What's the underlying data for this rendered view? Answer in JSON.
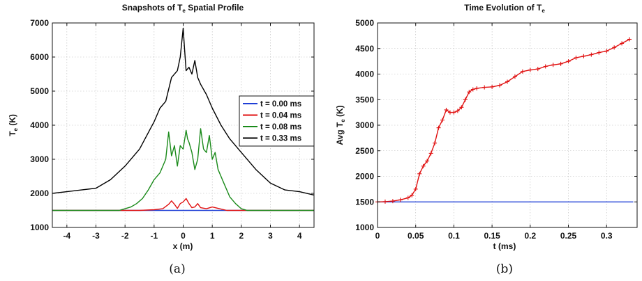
{
  "chart_data": [
    {
      "type": "line",
      "title": "Snapshots of T",
      "title_subscript": "e",
      "title_suffix": " Spatial Profile",
      "xlabel": "x (m)",
      "ylabel": "T",
      "ylabel_subscript": "e",
      "ylabel_suffix": " (K)",
      "xlim": [
        -4.5,
        4.5
      ],
      "ylim": [
        1000,
        7000
      ],
      "xticks": [
        -4,
        -3,
        -2,
        -1,
        0,
        1,
        2,
        3,
        4
      ],
      "yticks": [
        1000,
        2000,
        3000,
        4000,
        5000,
        6000,
        7000
      ],
      "xtick_labels": [
        "-4",
        "-3",
        "-2",
        "-1",
        "0",
        "1",
        "2",
        "3",
        "4"
      ],
      "ytick_labels": [
        "1000",
        "2000",
        "3000",
        "4000",
        "5000",
        "6000",
        "7000"
      ],
      "grid": true,
      "legend_position": "right",
      "caption": "(a)",
      "series": [
        {
          "name": "t = 0.00 ms",
          "color": "#1f3fd6",
          "x": [
            -4.5,
            4.5
          ],
          "y": [
            1500,
            1500
          ]
        },
        {
          "name": "t = 0.04 ms",
          "color": "#e01010",
          "x": [
            -4.5,
            -1.5,
            -1.0,
            -0.7,
            -0.5,
            -0.4,
            -0.3,
            -0.2,
            -0.1,
            0.0,
            0.1,
            0.2,
            0.3,
            0.4,
            0.5,
            0.6,
            0.8,
            1.0,
            1.2,
            1.5,
            4.5
          ],
          "y": [
            1500,
            1500,
            1520,
            1550,
            1680,
            1780,
            1680,
            1560,
            1700,
            1750,
            1850,
            1700,
            1580,
            1600,
            1700,
            1580,
            1550,
            1600,
            1560,
            1500,
            1500
          ]
        },
        {
          "name": "t = 0.08 ms",
          "color": "#1a8a1a",
          "x": [
            -4.5,
            -2.2,
            -2.0,
            -1.8,
            -1.6,
            -1.4,
            -1.2,
            -1.0,
            -0.8,
            -0.6,
            -0.5,
            -0.4,
            -0.3,
            -0.2,
            -0.1,
            0.0,
            0.1,
            0.15,
            0.2,
            0.3,
            0.4,
            0.5,
            0.6,
            0.7,
            0.8,
            0.9,
            1.0,
            1.1,
            1.2,
            1.4,
            1.6,
            1.8,
            2.0,
            2.2,
            4.5
          ],
          "y": [
            1500,
            1500,
            1550,
            1600,
            1700,
            1850,
            2100,
            2400,
            2600,
            3000,
            3800,
            3100,
            3400,
            2800,
            3400,
            3300,
            3850,
            3600,
            3500,
            3200,
            2700,
            3000,
            3900,
            3300,
            3200,
            3700,
            3000,
            3200,
            2700,
            2300,
            1900,
            1700,
            1550,
            1500,
            1500
          ]
        },
        {
          "name": "t = 0.33 ms",
          "color": "#000000",
          "x": [
            -4.5,
            -4.0,
            -3.5,
            -3.0,
            -2.5,
            -2.0,
            -1.5,
            -1.0,
            -0.8,
            -0.6,
            -0.4,
            -0.2,
            -0.1,
            0.0,
            0.05,
            0.1,
            0.2,
            0.3,
            0.4,
            0.5,
            0.6,
            0.8,
            1.0,
            1.3,
            1.6,
            2.0,
            2.5,
            3.0,
            3.5,
            4.0,
            4.5
          ],
          "y": [
            2000,
            2050,
            2100,
            2150,
            2400,
            2800,
            3300,
            4100,
            4500,
            4700,
            5400,
            5600,
            6000,
            6850,
            6200,
            5600,
            5700,
            5500,
            5900,
            5400,
            5200,
            4900,
            4500,
            4000,
            3600,
            3200,
            2700,
            2300,
            2100,
            2050,
            1950
          ]
        }
      ]
    },
    {
      "type": "line",
      "title": "Time Evolution of T",
      "title_subscript": "e",
      "title_suffix": "",
      "xlabel": "t (ms)",
      "ylabel": "Avg T",
      "ylabel_subscript": "e",
      "ylabel_suffix": " (K)",
      "xlim": [
        0,
        0.34
      ],
      "ylim": [
        1000,
        5000
      ],
      "xticks": [
        0,
        0.05,
        0.1,
        0.15,
        0.2,
        0.25,
        0.3
      ],
      "yticks": [
        1000,
        1500,
        2000,
        2500,
        3000,
        3500,
        4000,
        4500,
        5000
      ],
      "xtick_labels": [
        "0",
        "0.05",
        "0.1",
        "0.15",
        "0.2",
        "0.25",
        "0.3"
      ],
      "ytick_labels": [
        "1000",
        "1500",
        "2000",
        "2500",
        "3000",
        "3500",
        "4000",
        "4500",
        "5000"
      ],
      "grid": true,
      "caption": "(b)",
      "series": [
        {
          "color": "#1f3fd6",
          "x": [
            0,
            0.335
          ],
          "y": [
            1500,
            1500
          ]
        },
        {
          "color": "#e01010",
          "marker": "+",
          "x": [
            0.0,
            0.01,
            0.02,
            0.03,
            0.04,
            0.045,
            0.05,
            0.055,
            0.06,
            0.065,
            0.07,
            0.075,
            0.08,
            0.085,
            0.09,
            0.095,
            0.1,
            0.105,
            0.11,
            0.115,
            0.12,
            0.125,
            0.13,
            0.14,
            0.15,
            0.16,
            0.17,
            0.18,
            0.19,
            0.2,
            0.21,
            0.22,
            0.23,
            0.24,
            0.25,
            0.26,
            0.27,
            0.28,
            0.29,
            0.3,
            0.31,
            0.32,
            0.33
          ],
          "y": [
            1500,
            1505,
            1515,
            1540,
            1580,
            1630,
            1750,
            2050,
            2200,
            2300,
            2450,
            2650,
            2950,
            3100,
            3300,
            3250,
            3250,
            3280,
            3350,
            3500,
            3650,
            3700,
            3720,
            3740,
            3750,
            3780,
            3850,
            3950,
            4050,
            4080,
            4100,
            4150,
            4180,
            4200,
            4250,
            4320,
            4350,
            4380,
            4420,
            4450,
            4520,
            4600,
            4680
          ]
        }
      ]
    }
  ]
}
